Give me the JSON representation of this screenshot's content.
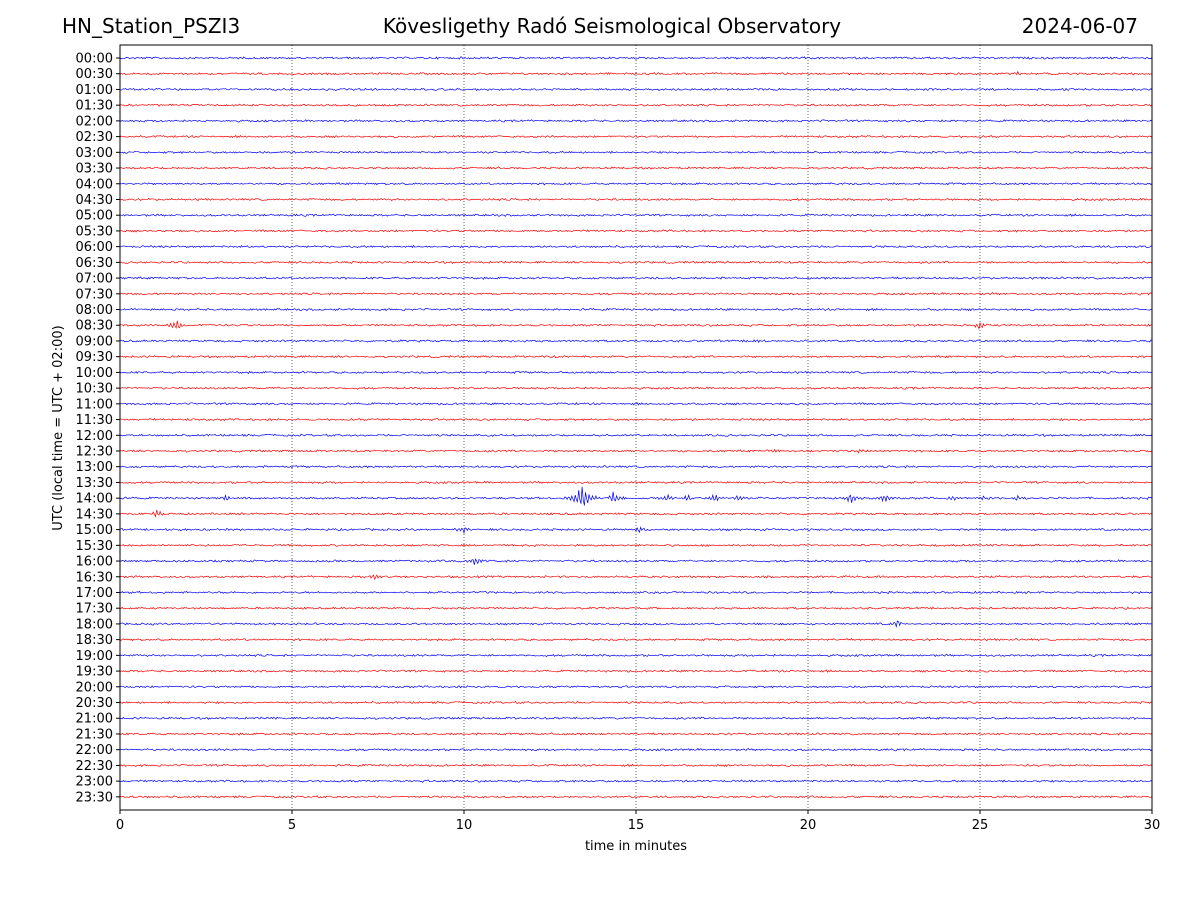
{
  "header": {
    "station": "HN_Station_PSZI3",
    "observatory": "Kövesligethy Radó Seismological Observatory",
    "date": "2024-06-07"
  },
  "chart_data": {
    "type": "line",
    "title": "Kövesligethy Radó Seismological Observatory",
    "xlabel": "time in minutes",
    "ylabel": "UTC (local time = UTC + 02:00)",
    "xlim": [
      0,
      30
    ],
    "x_ticks": [
      0,
      5,
      10,
      15,
      20,
      25,
      30
    ],
    "x_tick_labels": [
      "0",
      "5",
      "10",
      "15",
      "20",
      "25",
      "30"
    ],
    "vertical_grid_at": [
      5,
      10,
      15,
      20,
      25
    ],
    "grid": "vertical dotted",
    "row_labels": [
      "00:00",
      "00:30",
      "01:00",
      "01:30",
      "02:00",
      "02:30",
      "03:00",
      "03:30",
      "04:00",
      "04:30",
      "05:00",
      "05:30",
      "06:00",
      "06:30",
      "07:00",
      "07:30",
      "08:00",
      "08:30",
      "09:00",
      "09:30",
      "10:00",
      "10:30",
      "11:00",
      "11:30",
      "12:00",
      "12:30",
      "13:00",
      "13:30",
      "14:00",
      "14:30",
      "15:00",
      "15:30",
      "16:00",
      "16:30",
      "17:00",
      "17:30",
      "18:00",
      "18:30",
      "19:00",
      "19:30",
      "20:00",
      "20:30",
      "21:00",
      "21:30",
      "22:00",
      "22:30",
      "23:00",
      "23:30"
    ],
    "trace_colors": [
      "#0000ff",
      "#ff0000"
    ],
    "events": [
      {
        "row": "00:30",
        "minute": 26.1,
        "amplitude": 0.15
      },
      {
        "row": "08:30",
        "minute": 1.65,
        "amplitude": 0.45
      },
      {
        "row": "08:30",
        "minute": 25.0,
        "amplitude": 0.35
      },
      {
        "row": "09:00",
        "minute": 18.5,
        "amplitude": 0.15
      },
      {
        "row": "12:30",
        "minute": 19.1,
        "amplitude": 0.15
      },
      {
        "row": "12:30",
        "minute": 21.5,
        "amplitude": 0.15
      },
      {
        "row": "14:00",
        "minute": 3.1,
        "amplitude": 0.25
      },
      {
        "row": "14:00",
        "minute": 13.45,
        "amplitude": 1.0
      },
      {
        "row": "14:00",
        "minute": 14.35,
        "amplitude": 0.45
      },
      {
        "row": "14:00",
        "minute": 15.9,
        "amplitude": 0.25
      },
      {
        "row": "14:00",
        "minute": 16.5,
        "amplitude": 0.25
      },
      {
        "row": "14:00",
        "minute": 17.3,
        "amplitude": 0.35
      },
      {
        "row": "14:00",
        "minute": 18.0,
        "amplitude": 0.2
      },
      {
        "row": "14:00",
        "minute": 21.25,
        "amplitude": 0.4
      },
      {
        "row": "14:00",
        "minute": 22.2,
        "amplitude": 0.3
      },
      {
        "row": "14:00",
        "minute": 24.2,
        "amplitude": 0.15
      },
      {
        "row": "14:00",
        "minute": 25.1,
        "amplitude": 0.2
      },
      {
        "row": "14:00",
        "minute": 26.1,
        "amplitude": 0.2
      },
      {
        "row": "14:30",
        "minute": 1.05,
        "amplitude": 0.3
      },
      {
        "row": "15:00",
        "minute": 10.0,
        "amplitude": 0.3
      },
      {
        "row": "15:00",
        "minute": 15.1,
        "amplitude": 0.2
      },
      {
        "row": "16:00",
        "minute": 10.3,
        "amplitude": 0.35
      },
      {
        "row": "16:30",
        "minute": 7.4,
        "amplitude": 0.2
      },
      {
        "row": "18:00",
        "minute": 22.6,
        "amplitude": 0.3
      }
    ]
  }
}
